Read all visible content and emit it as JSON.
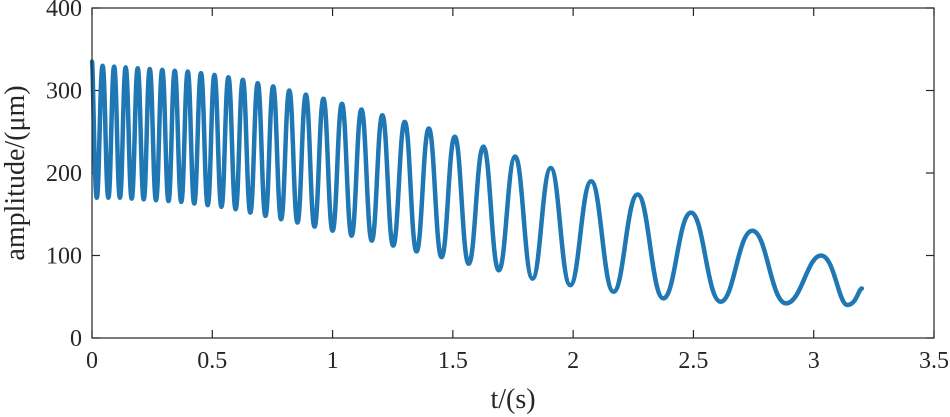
{
  "chart_data": {
    "type": "line",
    "title": "",
    "xlabel": "t/(s)",
    "ylabel": "amplitude/(μm)",
    "xlim": [
      0,
      3.5
    ],
    "ylim": [
      0,
      400
    ],
    "xticks": [
      "0",
      "0.5",
      "1",
      "1.5",
      "2",
      "2.5",
      "3",
      "3.5"
    ],
    "yticks": [
      "0",
      "100",
      "200",
      "300",
      "400"
    ],
    "grid": false,
    "legend": "none",
    "series": [
      {
        "color": "#1f77b4",
        "x": [
          0.0,
          0.02,
          0.044,
          0.068,
          0.092,
          0.116,
          0.14,
          0.165,
          0.19,
          0.215,
          0.24,
          0.266,
          0.292,
          0.318,
          0.344,
          0.371,
          0.398,
          0.425,
          0.453,
          0.481,
          0.509,
          0.538,
          0.567,
          0.597,
          0.627,
          0.658,
          0.689,
          0.721,
          0.753,
          0.786,
          0.82,
          0.854,
          0.889,
          0.925,
          0.962,
          1.0,
          1.039,
          1.079,
          1.12,
          1.163,
          1.207,
          1.252,
          1.3,
          1.349,
          1.4,
          1.453,
          1.508,
          1.566,
          1.627,
          1.691,
          1.759,
          1.831,
          1.907,
          1.988,
          2.075,
          2.168,
          2.268,
          2.375,
          2.49,
          2.613,
          2.745,
          2.885,
          3.03,
          3.14,
          3.2
        ],
        "values": [
          335,
          170,
          330,
          170,
          329,
          170,
          328,
          169,
          327,
          168,
          326,
          167,
          325,
          166,
          324,
          165,
          323,
          163,
          321,
          161,
          319,
          159,
          316,
          156,
          313,
          152,
          309,
          148,
          305,
          144,
          300,
          140,
          295,
          135,
          290,
          130,
          284,
          124,
          277,
          118,
          270,
          112,
          262,
          105,
          254,
          98,
          244,
          90,
          232,
          82,
          220,
          72,
          206,
          64,
          190,
          56,
          174,
          48,
          152,
          44,
          130,
          42,
          100,
          40,
          60
        ]
      }
    ]
  }
}
